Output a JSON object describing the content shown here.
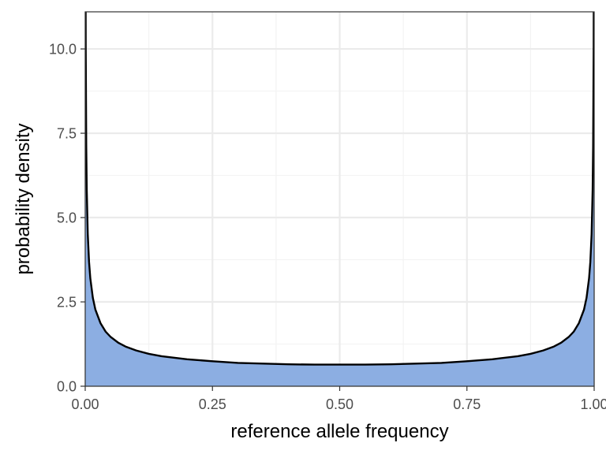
{
  "chart_data": {
    "type": "area",
    "title": "",
    "xlabel": "reference allele frequency",
    "ylabel": "probability density",
    "xlim": [
      0,
      1
    ],
    "ylim": [
      0,
      11.1
    ],
    "grid": true,
    "x_ticks": [
      0,
      0.25,
      0.5,
      0.75,
      1
    ],
    "x_tick_labels": [
      "0.00",
      "0.25",
      "0.50",
      "0.75",
      "1.00"
    ],
    "y_ticks": [
      0,
      2.5,
      5,
      7.5,
      10
    ],
    "y_tick_labels": [
      "0.0",
      "2.5",
      "5.0",
      "7.5",
      "10.0"
    ],
    "series": [
      {
        "distribution": "beta",
        "alpha": 0.5,
        "beta": 0.5,
        "x": [
          0.0005,
          0.001,
          0.002,
          0.003,
          0.005,
          0.0075,
          0.01,
          0.015,
          0.02,
          0.03,
          0.04,
          0.05,
          0.065,
          0.08,
          0.1,
          0.125,
          0.15,
          0.2,
          0.25,
          0.3,
          0.35,
          0.4,
          0.45,
          0.5,
          0.55,
          0.6,
          0.65,
          0.7,
          0.75,
          0.8,
          0.85,
          0.875,
          0.9,
          0.92,
          0.935,
          0.95,
          0.96,
          0.97,
          0.98,
          0.985,
          0.99,
          0.9925,
          0.995,
          0.997,
          0.998,
          0.999,
          0.9995
        ],
        "y": [
          14.24,
          10.07,
          7.13,
          5.82,
          4.51,
          3.69,
          3.2,
          2.62,
          2.27,
          1.87,
          1.62,
          1.46,
          1.29,
          1.17,
          1.06,
          0.96,
          0.89,
          0.8,
          0.74,
          0.69,
          0.67,
          0.65,
          0.64,
          0.64,
          0.64,
          0.65,
          0.67,
          0.69,
          0.74,
          0.8,
          0.89,
          0.96,
          1.06,
          1.17,
          1.29,
          1.46,
          1.62,
          1.87,
          2.27,
          2.62,
          3.2,
          3.69,
          4.51,
          5.82,
          7.13,
          10.07,
          14.24
        ],
        "fill_color": "#8caee2",
        "line_color": "#000000"
      }
    ],
    "colors": {
      "panel_background": "#ffffff",
      "grid_major": "#ebebeb",
      "grid_minor": "#f3f3f3",
      "panel_border": "#333333"
    }
  }
}
